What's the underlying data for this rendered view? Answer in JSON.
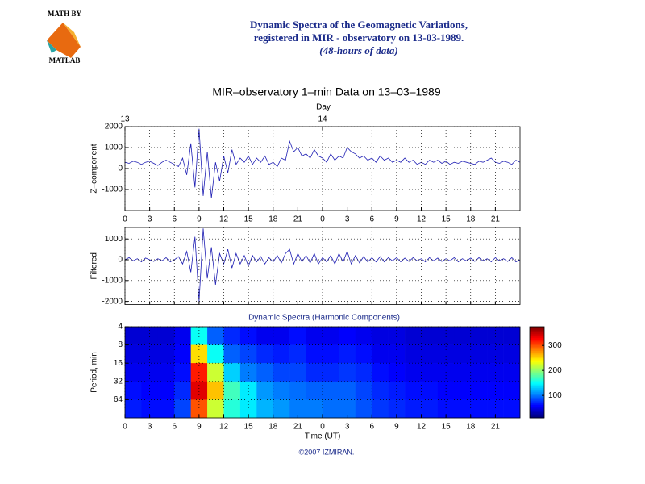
{
  "header": {
    "logo_top": "MATH BY",
    "logo_bottom": "MATLAB",
    "lines": [
      "Dynamic Spectra of the Geomagnetic Variations,",
      "registered in MIR - observatory on 13-03-1989.",
      "(48-hours of data)"
    ]
  },
  "footer": "©2007 IZMIRAN.",
  "chart_data": [
    {
      "type": "line",
      "title": "MIR–observatory 1–min Data on 13–03–1989",
      "top_axis_label": "Day",
      "top_ticks": [
        {
          "value": 0,
          "label": "13"
        },
        {
          "value": 24,
          "label": "14"
        }
      ],
      "ylabel": "Z–component",
      "color": "#1f1fb4",
      "grid": true,
      "xlim": [
        0,
        48
      ],
      "xticks": [
        0,
        3,
        6,
        9,
        12,
        15,
        18,
        21,
        {
          "value": 24,
          "label": "0"
        },
        {
          "value": 27,
          "label": "3"
        },
        {
          "value": 30,
          "label": "6"
        },
        {
          "value": 33,
          "label": "9"
        },
        {
          "value": 36,
          "label": "12"
        },
        {
          "value": 39,
          "label": "15"
        },
        {
          "value": 42,
          "label": "18"
        },
        {
          "value": 45,
          "label": "21"
        }
      ],
      "ylim": [
        -2000,
        2000
      ],
      "yticks": [
        2000,
        1000,
        0,
        -1000
      ],
      "x": [
        0,
        0.5,
        1,
        1.5,
        2,
        2.5,
        3,
        3.5,
        4,
        4.5,
        5,
        5.5,
        6,
        6.5,
        7,
        7.5,
        8,
        8.5,
        9,
        9.5,
        10,
        10.5,
        11,
        11.5,
        12,
        12.5,
        13,
        13.5,
        14,
        14.5,
        15,
        15.5,
        16,
        16.5,
        17,
        17.5,
        18,
        18.5,
        19,
        19.5,
        20,
        20.5,
        21,
        21.5,
        22,
        22.5,
        23,
        23.5,
        24,
        24.5,
        25,
        25.5,
        26,
        26.5,
        27,
        27.5,
        28,
        28.5,
        29,
        29.5,
        30,
        30.5,
        31,
        31.5,
        32,
        32.5,
        33,
        33.5,
        34,
        34.5,
        35,
        35.5,
        36,
        36.5,
        37,
        37.5,
        38,
        38.5,
        39,
        39.5,
        40,
        40.5,
        41,
        41.5,
        42,
        42.5,
        43,
        43.5,
        44,
        44.5,
        45,
        45.5,
        46,
        46.5,
        47,
        47.5,
        48
      ],
      "values": [
        300,
        250,
        350,
        300,
        200,
        300,
        350,
        250,
        150,
        300,
        400,
        300,
        200,
        100,
        500,
        -300,
        1200,
        -900,
        1900,
        -1300,
        800,
        -1400,
        300,
        -600,
        600,
        -200,
        900,
        200,
        500,
        300,
        600,
        200,
        500,
        300,
        600,
        200,
        300,
        100,
        500,
        400,
        1300,
        800,
        1000,
        600,
        700,
        500,
        900,
        600,
        500,
        300,
        700,
        400,
        600,
        500,
        1000,
        800,
        700,
        500,
        600,
        400,
        500,
        300,
        600,
        400,
        500,
        300,
        400,
        300,
        500,
        300,
        400,
        200,
        300,
        200,
        400,
        300,
        400,
        250,
        350,
        200,
        300,
        250,
        350,
        300,
        250,
        200,
        350,
        300,
        400,
        500,
        300,
        250,
        350,
        300,
        200,
        400,
        300
      ]
    },
    {
      "type": "line",
      "ylabel": "Filtered",
      "color": "#1f1fb4",
      "grid": true,
      "xlim": [
        0,
        48
      ],
      "xticks": [
        0,
        3,
        6,
        9,
        12,
        15,
        18,
        21,
        {
          "value": 24,
          "label": "0"
        },
        {
          "value": 27,
          "label": "3"
        },
        {
          "value": 30,
          "label": "6"
        },
        {
          "value": 33,
          "label": "9"
        },
        {
          "value": 36,
          "label": "12"
        },
        {
          "value": 39,
          "label": "15"
        },
        {
          "value": 42,
          "label": "18"
        },
        {
          "value": 45,
          "label": "21"
        }
      ],
      "ylim": [
        -2150,
        1550
      ],
      "yticks": [
        1000,
        0,
        -1000,
        -2000
      ],
      "x": [
        0,
        0.5,
        1,
        1.5,
        2,
        2.5,
        3,
        3.5,
        4,
        4.5,
        5,
        5.5,
        6,
        6.5,
        7,
        7.5,
        8,
        8.5,
        9,
        9.5,
        10,
        10.5,
        11,
        11.5,
        12,
        12.5,
        13,
        13.5,
        14,
        14.5,
        15,
        15.5,
        16,
        16.5,
        17,
        17.5,
        18,
        18.5,
        19,
        19.5,
        20,
        20.5,
        21,
        21.5,
        22,
        22.5,
        23,
        23.5,
        24,
        24.5,
        25,
        25.5,
        26,
        26.5,
        27,
        27.5,
        28,
        28.5,
        29,
        29.5,
        30,
        30.5,
        31,
        31.5,
        32,
        32.5,
        33,
        33.5,
        34,
        34.5,
        35,
        35.5,
        36,
        36.5,
        37,
        37.5,
        38,
        38.5,
        39,
        39.5,
        40,
        40.5,
        41,
        41.5,
        42,
        42.5,
        43,
        43.5,
        44,
        44.5,
        45,
        45.5,
        46,
        46.5,
        47,
        47.5,
        48
      ],
      "values": [
        0,
        100,
        -50,
        50,
        -100,
        80,
        0,
        -80,
        50,
        -50,
        100,
        -100,
        0,
        150,
        -200,
        400,
        -600,
        1100,
        -2000,
        1500,
        -900,
        600,
        -1200,
        300,
        -200,
        500,
        -400,
        300,
        -200,
        200,
        -300,
        200,
        -100,
        150,
        -200,
        100,
        -100,
        200,
        -150,
        300,
        500,
        -200,
        300,
        -100,
        200,
        -150,
        300,
        -200,
        100,
        -100,
        200,
        -200,
        300,
        -100,
        400,
        -200,
        200,
        -150,
        150,
        -100,
        100,
        -100,
        150,
        -100,
        100,
        -50,
        100,
        -100,
        80,
        -80,
        100,
        -50,
        50,
        -100,
        100,
        -50,
        80,
        -80,
        50,
        -50,
        100,
        -100,
        50,
        -50,
        80,
        -80,
        100,
        -50,
        50,
        -100,
        100,
        -50,
        50,
        -80,
        100,
        -100,
        0
      ]
    },
    {
      "type": "heatmap",
      "title": "Dynamic Spectra (Harmonic Components)",
      "xlabel": "Time (UT)",
      "ylabel": "Period, min",
      "grid": true,
      "log_y": true,
      "xlim": [
        0,
        48
      ],
      "xticks": [
        0,
        3,
        6,
        9,
        12,
        15,
        18,
        21,
        {
          "value": 24,
          "label": "0"
        },
        {
          "value": 27,
          "label": "3"
        },
        {
          "value": 30,
          "label": "6"
        },
        {
          "value": 33,
          "label": "9"
        },
        {
          "value": 36,
          "label": "12"
        },
        {
          "value": 39,
          "label": "15"
        },
        {
          "value": 42,
          "label": "18"
        },
        {
          "value": 45,
          "label": "21"
        }
      ],
      "ylim": [
        4,
        128
      ],
      "yticks": [
        4,
        8,
        16,
        32,
        64
      ],
      "clim": [
        10,
        375
      ],
      "cticks": [
        100,
        200,
        300
      ],
      "colormap": "jet",
      "x": [
        1,
        3,
        5,
        7,
        9,
        11,
        13,
        15,
        17,
        19,
        21,
        23,
        25,
        27,
        29,
        31,
        33,
        35,
        37,
        39,
        41,
        43,
        45,
        47
      ],
      "y": [
        5.66,
        11.3,
        22.6,
        45.3,
        90.5
      ],
      "z": [
        [
          40,
          40,
          40,
          50,
          150,
          90,
          70,
          60,
          50,
          50,
          60,
          50,
          50,
          55,
          50,
          45,
          45,
          40,
          40,
          40,
          40,
          40,
          40,
          40
        ],
        [
          45,
          45,
          45,
          55,
          250,
          150,
          90,
          80,
          70,
          65,
          70,
          60,
          60,
          65,
          60,
          50,
          50,
          45,
          45,
          45,
          45,
          45,
          45,
          45
        ],
        [
          50,
          50,
          50,
          60,
          320,
          220,
          130,
          100,
          90,
          80,
          80,
          70,
          70,
          75,
          70,
          60,
          55,
          50,
          50,
          50,
          50,
          50,
          50,
          50
        ],
        [
          60,
          55,
          55,
          70,
          340,
          260,
          170,
          140,
          110,
          100,
          95,
          90,
          90,
          90,
          80,
          70,
          65,
          60,
          60,
          55,
          55,
          55,
          55,
          55
        ],
        [
          65,
          60,
          60,
          80,
          300,
          220,
          160,
          140,
          120,
          110,
          100,
          100,
          95,
          95,
          85,
          75,
          70,
          65,
          65,
          60,
          60,
          60,
          60,
          60
        ]
      ]
    }
  ]
}
